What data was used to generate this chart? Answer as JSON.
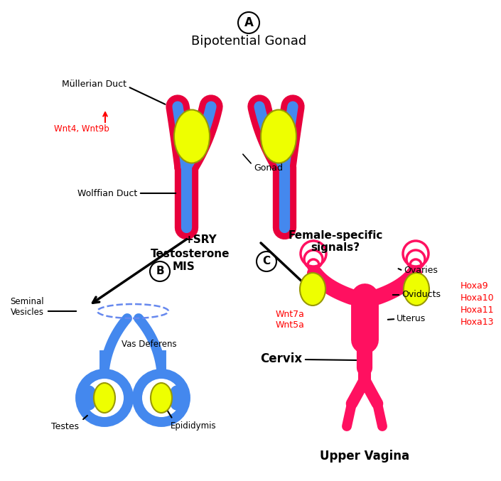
{
  "title": "Bipotential Gonad",
  "label_A": "A",
  "label_B": "B",
  "label_C": "C",
  "color_red": "#E8003C",
  "color_blue": "#4488EE",
  "color_yellow": "#EEFF00",
  "color_black": "#000000",
  "color_red_text": "#FF0000",
  "color_dark_blue": "#3366CC",
  "bg_color": "#FFFFFF",
  "labels": {
    "mullerian": "Müllerian Duct",
    "wolffian": "Wolffian Duct",
    "gonad": "Gonad",
    "wnt4": "Wnt4, Wnt9b",
    "sry": "+SRY",
    "testosterone": "Testosterone",
    "mis": "MIS",
    "female_signals": "Female-specific\nsignals?",
    "seminal": "Seminal\nVesicles",
    "vas": "Vas Deferens",
    "testes": "Testes",
    "epididymis": "Epididymis",
    "ovaries": "Ovaries",
    "oviducts": "Oviducts",
    "uterus": "Uterus",
    "cervix": "Cervix",
    "upper_vagina": "Upper Vagina",
    "wnt7a": "Wnt7a\nWnt5a",
    "hoxa": "Hoxa9\nHoxa10\nHoxa11\nHoxa13"
  }
}
